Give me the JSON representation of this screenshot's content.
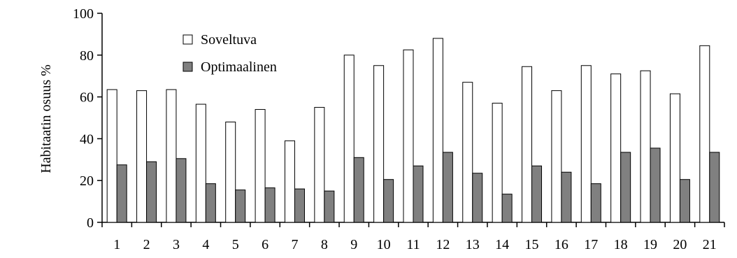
{
  "chart_data": {
    "type": "bar",
    "title": "",
    "xlabel": "",
    "ylabel": "Habitaatin osuus %",
    "categories": [
      "1",
      "2",
      "3",
      "4",
      "5",
      "6",
      "7",
      "8",
      "9",
      "10",
      "11",
      "12",
      "13",
      "14",
      "15",
      "16",
      "17",
      "18",
      "19",
      "20",
      "21"
    ],
    "series": [
      {
        "name": "Soveltuva",
        "color": "#ffffff",
        "values": [
          63.5,
          63,
          63.5,
          56.5,
          48,
          54,
          39,
          55,
          80,
          75,
          82.5,
          88,
          67,
          57,
          74.5,
          63,
          75,
          71,
          72.5,
          61.5,
          84.5
        ]
      },
      {
        "name": "Optimaalinen",
        "color": "#808080",
        "values": [
          27.5,
          29,
          30.5,
          18.5,
          15.5,
          16.5,
          16,
          15,
          31,
          20.5,
          27,
          33.5,
          23.5,
          13.5,
          27,
          24,
          18.5,
          33.5,
          35.5,
          20.5,
          33.5
        ]
      }
    ],
    "ylim": [
      0,
      100
    ],
    "yticks": [
      0,
      20,
      40,
      60,
      80,
      100
    ],
    "grid": false,
    "legend": "top-left inside plot"
  }
}
